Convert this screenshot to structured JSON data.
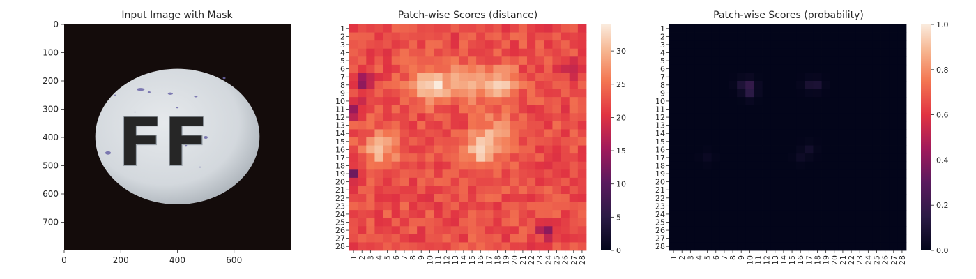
{
  "chart_data": [
    {
      "type": "image",
      "title": "Input Image with Mask",
      "xticks": [
        0,
        200,
        400,
        600
      ],
      "yticks": [
        0,
        100,
        200,
        300,
        400,
        500,
        600,
        700
      ],
      "xlim": [
        0,
        800
      ],
      "ylim": [
        800,
        0
      ],
      "image": {
        "background": "#140c0b",
        "pill_color": "#d6dbe0",
        "mark_color": "#6b66a8",
        "imprint": "FF"
      }
    },
    {
      "type": "heatmap",
      "title": "Patch-wise Scores (distance)",
      "rows": 28,
      "cols": 28,
      "vmin": 0,
      "vmax": 34,
      "colorbar_ticks": [
        0,
        5,
        10,
        15,
        20,
        25,
        30
      ],
      "colormap": "rocket",
      "base_value": 22.5,
      "hotspots": [
        {
          "row": 8,
          "col": 10,
          "value": 34
        },
        {
          "row": 8,
          "col": 18,
          "value": 32
        },
        {
          "row": 8,
          "col": 14,
          "value": 29
        },
        {
          "row": 16,
          "col": 4,
          "value": 30
        },
        {
          "row": 16,
          "col": 16,
          "value": 31
        },
        {
          "row": 14,
          "col": 18,
          "value": 28
        }
      ],
      "lowspots": [
        {
          "row": 11,
          "col": 1,
          "value": 14
        },
        {
          "row": 19,
          "col": 1,
          "value": 13
        },
        {
          "row": 26,
          "col": 24,
          "value": 15
        },
        {
          "row": 6,
          "col": 27,
          "value": 17
        },
        {
          "row": 7,
          "col": 2,
          "value": 17
        },
        {
          "row": 8,
          "col": 2,
          "value": 16
        }
      ]
    },
    {
      "type": "heatmap",
      "title": "Patch-wise Scores (probability)",
      "rows": 28,
      "cols": 28,
      "vmin": 0.0,
      "vmax": 1.0,
      "colorbar_ticks": [
        "0.0",
        "0.2",
        "0.4",
        "0.6",
        "0.8",
        "1.0"
      ],
      "colormap": "rocket",
      "base_value": 0.0,
      "hotspots": [
        {
          "row": 8,
          "col": 10,
          "value": 0.14
        },
        {
          "row": 9,
          "col": 10,
          "value": 0.12
        },
        {
          "row": 8,
          "col": 9,
          "value": 0.07
        },
        {
          "row": 8,
          "col": 17,
          "value": 0.07
        },
        {
          "row": 8,
          "col": 18,
          "value": 0.08
        },
        {
          "row": 16,
          "col": 17,
          "value": 0.06
        },
        {
          "row": 17,
          "col": 16,
          "value": 0.04
        },
        {
          "row": 17,
          "col": 5,
          "value": 0.03
        }
      ]
    }
  ]
}
